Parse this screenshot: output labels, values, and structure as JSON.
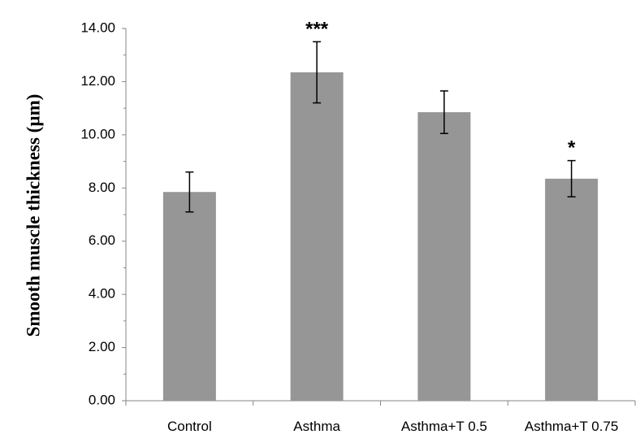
{
  "chart_data": {
    "type": "bar",
    "title": "",
    "xlabel": "",
    "ylabel": "Smooth muscle thickness (µm)",
    "categories": [
      "Control",
      "Asthma",
      "Asthma+T 0.5",
      "Asthma+T 0.75"
    ],
    "values": [
      7.85,
      12.35,
      10.85,
      8.35
    ],
    "errors": [
      0.75,
      1.15,
      0.8,
      0.68
    ],
    "significance": [
      "",
      "***",
      "",
      "*"
    ],
    "ylim": [
      0,
      14
    ],
    "yticks": [
      "0.00",
      "2.00",
      "4.00",
      "6.00",
      "8.00",
      "10.00",
      "12.00",
      "14.00"
    ],
    "grid": false,
    "legend": "none",
    "colors": {
      "bar": "#969696",
      "axis": "#868686",
      "error_bar": "#000000",
      "text": "#000000"
    }
  }
}
